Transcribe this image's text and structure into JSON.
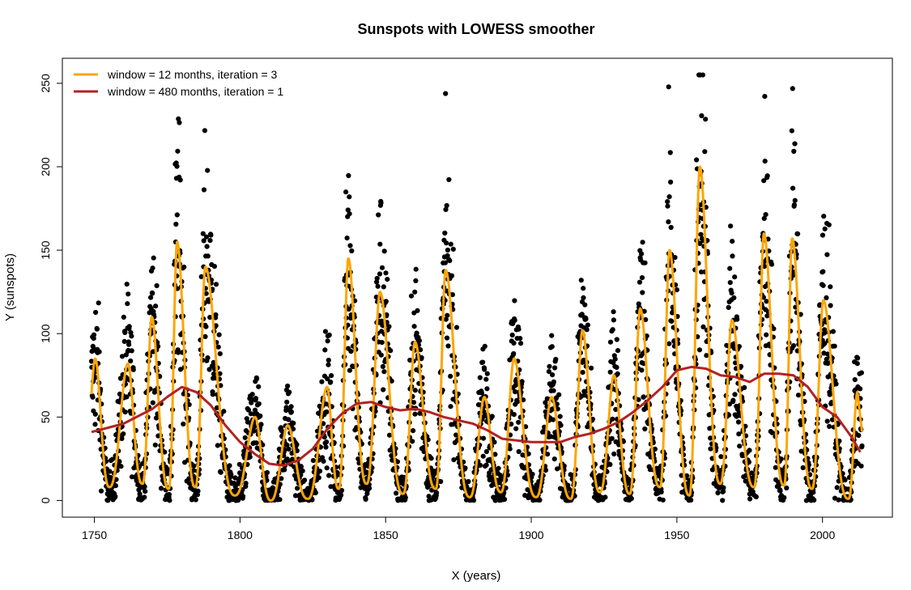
{
  "chart_data": {
    "type": "scatter",
    "title": "Sunspots with LOWESS smoother",
    "xlabel": "X (years)",
    "ylabel": "Y (sunspots)",
    "xlim": [
      1739,
      2024
    ],
    "ylim": [
      -10,
      265
    ],
    "x_ticks": [
      1750,
      1800,
      1850,
      1900,
      1950,
      2000
    ],
    "y_ticks": [
      0,
      50,
      100,
      150,
      200,
      250
    ],
    "grid": false,
    "legend_position": "top-left",
    "points_color": "#000000",
    "cycle_peaks": [
      [
        1750.3,
        85
      ],
      [
        1761.5,
        82
      ],
      [
        1769.7,
        110
      ],
      [
        1778.4,
        155
      ],
      [
        1788.1,
        140
      ],
      [
        1805.2,
        50
      ],
      [
        1816.4,
        45
      ],
      [
        1829.9,
        68
      ],
      [
        1837.2,
        145
      ],
      [
        1848.1,
        125
      ],
      [
        1860.1,
        95
      ],
      [
        1870.6,
        138
      ],
      [
        1883.9,
        62
      ],
      [
        1894.1,
        85
      ],
      [
        1907.0,
        62
      ],
      [
        1917.6,
        102
      ],
      [
        1928.4,
        75
      ],
      [
        1937.4,
        115
      ],
      [
        1947.5,
        150
      ],
      [
        1957.9,
        200
      ],
      [
        1968.9,
        108
      ],
      [
        1979.9,
        160
      ],
      [
        1989.6,
        157
      ],
      [
        2000.3,
        120
      ],
      [
        2012.0,
        65
      ]
    ],
    "cycle_minima": [
      [
        1755.2,
        8
      ],
      [
        1766.5,
        10
      ],
      [
        1775.5,
        7
      ],
      [
        1784.7,
        8
      ],
      [
        1798.3,
        3
      ],
      [
        1810.6,
        0
      ],
      [
        1823.3,
        1
      ],
      [
        1833.9,
        7
      ],
      [
        1843.5,
        10
      ],
      [
        1856.0,
        4
      ],
      [
        1867.2,
        7
      ],
      [
        1878.9,
        2
      ],
      [
        1889.6,
        5
      ],
      [
        1901.7,
        2
      ],
      [
        1913.6,
        1
      ],
      [
        1923.6,
        5
      ],
      [
        1933.8,
        4
      ],
      [
        1944.2,
        8
      ],
      [
        1954.3,
        3
      ],
      [
        1964.9,
        10
      ],
      [
        1976.5,
        8
      ],
      [
        1986.8,
        9
      ],
      [
        1996.4,
        7
      ],
      [
        2008.9,
        1
      ]
    ],
    "series": [
      {
        "name": "window = 12 months, iteration = 3",
        "color": "#FFA500",
        "type": "line",
        "description": "smooth follows cycle peaks and minima"
      },
      {
        "name": "window = 480 months, iteration = 1",
        "color": "#B22222",
        "type": "line",
        "x": [
          1749,
          1760,
          1770,
          1775,
          1780,
          1785,
          1790,
          1795,
          1800,
          1805,
          1810,
          1815,
          1820,
          1825,
          1830,
          1835,
          1840,
          1845,
          1850,
          1855,
          1860,
          1865,
          1870,
          1875,
          1880,
          1885,
          1890,
          1895,
          1900,
          1905,
          1910,
          1915,
          1920,
          1925,
          1930,
          1935,
          1940,
          1945,
          1950,
          1955,
          1960,
          1965,
          1970,
          1975,
          1980,
          1985,
          1990,
          1995,
          2000,
          2005,
          2010,
          2013
        ],
        "values": [
          41,
          46,
          55,
          62,
          68,
          65,
          57,
          45,
          35,
          28,
          22,
          21,
          24,
          31,
          43,
          52,
          58,
          59,
          56,
          54,
          55,
          53,
          50,
          48,
          46,
          42,
          37,
          36,
          35,
          35,
          35,
          38,
          40,
          43,
          47,
          53,
          60,
          68,
          78,
          80,
          79,
          75,
          74,
          71,
          76,
          76,
          75,
          68,
          56,
          50,
          38,
          29
        ]
      }
    ]
  }
}
